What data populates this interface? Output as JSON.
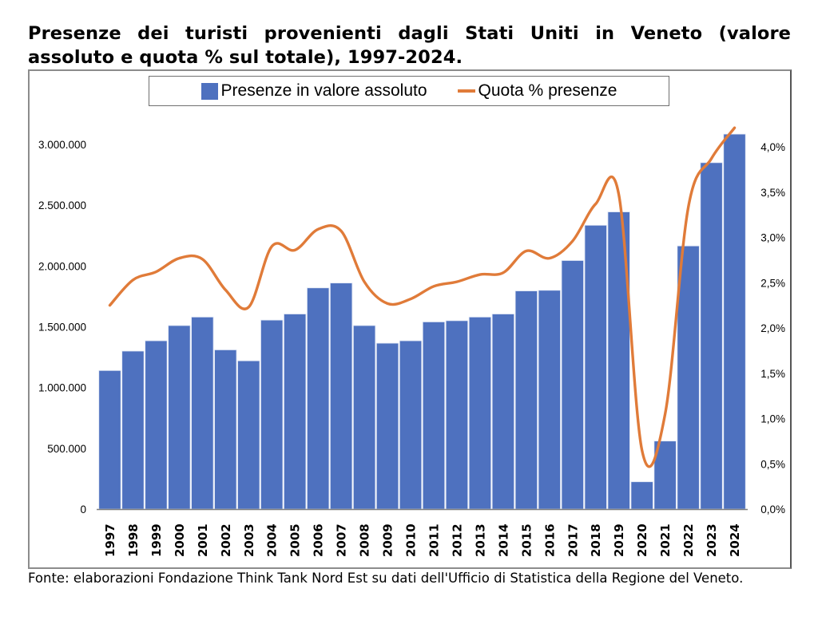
{
  "title": "Presenze dei turisti provenienti dagli Stati Uniti in Veneto (valore assoluto e quota % sul totale), 1997-2024.",
  "footer": "Fonte: elaborazioni Fondazione Think Tank Nord Est su dati dell'Ufficio di Statistica della Regione del Veneto.",
  "colors": {
    "bars": "#4e71bf",
    "line": "#e07b39",
    "frame": "#8c8c8c"
  },
  "chart_data": {
    "type": "bar",
    "combo": "bar+line (secondary axis)",
    "title": "Presenze dei turisti provenienti dagli Stati Uniti in Veneto (valore assoluto e quota % sul totale), 1997-2024.",
    "xlabel": "",
    "ylabel": "",
    "y2label": "",
    "legend_position": "top",
    "grid": false,
    "categories": [
      "1997",
      "1998",
      "1999",
      "2000",
      "2001",
      "2002",
      "2003",
      "2004",
      "2005",
      "2006",
      "2007",
      "2008",
      "2009",
      "2010",
      "2011",
      "2012",
      "2013",
      "2014",
      "2015",
      "2016",
      "2017",
      "2018",
      "2019",
      "2020",
      "2021",
      "2022",
      "2023",
      "2024"
    ],
    "series": [
      {
        "name": "Presenze in valore assoluto",
        "type": "bar",
        "axis": "left",
        "values": [
          1140000,
          1300000,
          1385000,
          1510000,
          1580000,
          1310000,
          1220000,
          1555000,
          1605000,
          1820000,
          1860000,
          1510000,
          1365000,
          1385000,
          1540000,
          1550000,
          1580000,
          1605000,
          1795000,
          1800000,
          2045000,
          2335000,
          2445000,
          225000,
          560000,
          2165000,
          2850000,
          3085000
        ]
      },
      {
        "name": "Quota % presenze",
        "type": "line",
        "smooth": true,
        "axis": "right",
        "values": [
          2.25,
          2.53,
          2.62,
          2.77,
          2.76,
          2.42,
          2.23,
          2.9,
          2.86,
          3.09,
          3.07,
          2.51,
          2.27,
          2.32,
          2.46,
          2.51,
          2.59,
          2.61,
          2.85,
          2.77,
          2.96,
          3.37,
          3.47,
          0.65,
          1.05,
          3.33,
          3.87,
          4.21
        ]
      }
    ],
    "ylim": [
      0,
      3000000
    ],
    "y2lim": [
      0,
      4.0
    ],
    "y_ticks": [
      {
        "value": 0,
        "label": "0"
      },
      {
        "value": 500000,
        "label": "500.000"
      },
      {
        "value": 1000000,
        "label": "1.000.000"
      },
      {
        "value": 1500000,
        "label": "1.500.000"
      },
      {
        "value": 2000000,
        "label": "2.000.000"
      },
      {
        "value": 2500000,
        "label": "2.500.000"
      },
      {
        "value": 3000000,
        "label": "3.000.000"
      }
    ],
    "y2_ticks": [
      {
        "value": 0.0,
        "label": "0,0%"
      },
      {
        "value": 0.5,
        "label": "0,5%"
      },
      {
        "value": 1.0,
        "label": "1,0%"
      },
      {
        "value": 1.5,
        "label": "1,5%"
      },
      {
        "value": 2.0,
        "label": "2,0%"
      },
      {
        "value": 2.5,
        "label": "2,5%"
      },
      {
        "value": 3.0,
        "label": "3,0%"
      },
      {
        "value": 3.5,
        "label": "3,5%"
      },
      {
        "value": 4.0,
        "label": "4,0%"
      }
    ]
  }
}
